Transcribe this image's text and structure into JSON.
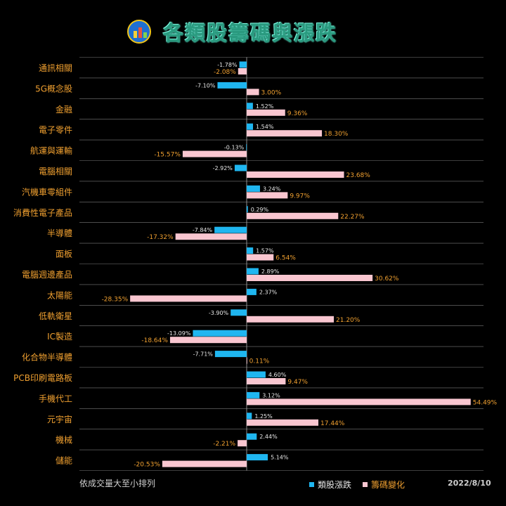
{
  "header": {
    "title": "各類股籌碼與漲跌"
  },
  "footer": {
    "note": "依成交量大至小排列",
    "date": "2022/8/10"
  },
  "colors": {
    "price": "#1fb6f0",
    "chip": "#f9c6d0",
    "label": "#f0a030",
    "value_label": "#e8e8e8"
  },
  "chart_data": {
    "type": "bar",
    "orientation": "horizontal",
    "categories": [
      "通訊相關",
      "5G概念股",
      "金融",
      "電子零件",
      "航運與運輸",
      "電腦相關",
      "汽機車零組件",
      "消費性電子產品",
      "半導體",
      "面板",
      "電腦週邊產品",
      "太陽能",
      "低軌衛星",
      "IC製造",
      "化合物半導體",
      "PCB印刷電路板",
      "手機代工",
      "元宇宙",
      "機械",
      "儲能"
    ],
    "series": [
      {
        "name": "類股漲跌",
        "color": "#1fb6f0",
        "values": [
          -1.78,
          -7.1,
          1.52,
          1.54,
          -0.13,
          -2.92,
          3.24,
          0.29,
          -7.84,
          1.57,
          2.89,
          2.37,
          -3.9,
          -13.09,
          -7.71,
          4.6,
          3.12,
          1.25,
          2.44,
          5.14
        ],
        "labels": [
          "-1.78%",
          "-7.10%",
          "1.52%",
          "1.54%",
          "-0.13%",
          "-2.92%",
          "3.24%",
          "0.29%",
          "-7.84%",
          "1.57%",
          "2.89%",
          "2.37%",
          "-3.90%",
          "-13.09%",
          "-7.71%",
          "4.60%",
          "3.12%",
          "1.25%",
          "2.44%",
          "5.14%"
        ]
      },
      {
        "name": "籌碼變化",
        "color": "#f9c6d0",
        "values": [
          -2.08,
          3.0,
          9.36,
          18.3,
          -15.57,
          23.68,
          9.97,
          22.27,
          -17.32,
          6.54,
          30.62,
          -28.35,
          21.2,
          -18.64,
          0.11,
          9.47,
          54.49,
          17.44,
          -2.21,
          -20.53
        ],
        "labels": [
          "-2.08%",
          "3.00%",
          "9.36%",
          "18.30%",
          "-15.57%",
          "23.68%",
          "9.97%",
          "22.27%",
          "-17.32%",
          "6.54%",
          "30.62%",
          "-28.35%",
          "21.20%",
          "-18.64%",
          "0.11%",
          "9.47%",
          "54.49%",
          "17.44%",
          "-2.21%",
          "-20.53%"
        ]
      }
    ],
    "legend_position": "bottom-right",
    "grid": "horizontal separators"
  }
}
